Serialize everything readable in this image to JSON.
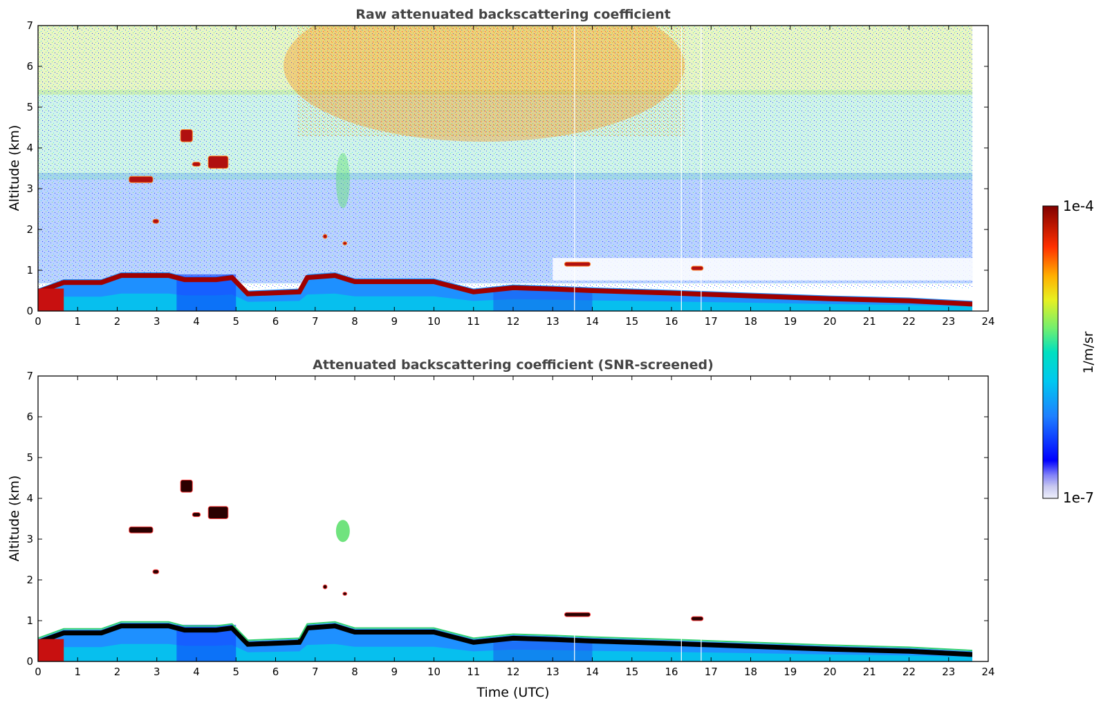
{
  "chart_data": [
    {
      "type": "heatmap",
      "title": "Raw attenuated backscattering coefficient",
      "xlabel": "",
      "ylabel": "Altitude (km)",
      "xlim": [
        0,
        24
      ],
      "ylim": [
        0,
        7
      ],
      "x_ticks": [
        "0",
        "1",
        "2",
        "3",
        "4",
        "5",
        "6",
        "7",
        "8",
        "9",
        "10",
        "11",
        "12",
        "13",
        "14",
        "15",
        "16",
        "17",
        "18",
        "19",
        "20",
        "21",
        "22",
        "23",
        "24"
      ],
      "y_ticks": [
        "0",
        "1",
        "2",
        "3",
        "4",
        "5",
        "6",
        "7"
      ],
      "data_end_hour": 23.6,
      "boundary_layer_top_km": [
        [
          0.0,
          0.55
        ],
        [
          0.65,
          0.78
        ],
        [
          1.6,
          0.78
        ],
        [
          2.1,
          0.95
        ],
        [
          3.3,
          0.95
        ],
        [
          3.7,
          0.85
        ],
        [
          4.5,
          0.85
        ],
        [
          4.9,
          0.9
        ],
        [
          5.3,
          0.5
        ],
        [
          6.6,
          0.55
        ],
        [
          6.8,
          0.9
        ],
        [
          7.5,
          0.95
        ],
        [
          8.0,
          0.8
        ],
        [
          10.0,
          0.8
        ],
        [
          10.6,
          0.65
        ],
        [
          11.0,
          0.55
        ],
        [
          12.0,
          0.65
        ],
        [
          13.0,
          0.62
        ],
        [
          14.0,
          0.58
        ],
        [
          16.0,
          0.52
        ],
        [
          18.0,
          0.45
        ],
        [
          20.0,
          0.38
        ],
        [
          22.0,
          0.33
        ],
        [
          23.6,
          0.25
        ]
      ],
      "cloud_features": [
        {
          "t0": 3.6,
          "t1": 3.9,
          "z0": 4.15,
          "z1": 4.45
        },
        {
          "t0": 4.3,
          "t1": 4.8,
          "z0": 3.5,
          "z1": 3.8
        },
        {
          "t0": 2.3,
          "t1": 2.9,
          "z0": 3.15,
          "z1": 3.3
        },
        {
          "t0": 3.9,
          "t1": 4.1,
          "z0": 3.55,
          "z1": 3.65
        },
        {
          "t0": 2.9,
          "t1": 3.05,
          "z0": 2.15,
          "z1": 2.25
        },
        {
          "t0": 13.3,
          "t1": 13.95,
          "z0": 1.1,
          "z1": 1.2
        },
        {
          "t0": 16.5,
          "t1": 16.8,
          "z0": 1.0,
          "z1": 1.1
        },
        {
          "t0": 7.7,
          "t1": 7.8,
          "z0": 1.62,
          "z1": 1.7
        },
        {
          "t0": 7.2,
          "t1": 7.3,
          "z0": 1.78,
          "z1": 1.88
        }
      ]
    },
    {
      "type": "heatmap",
      "title": "Attenuated backscattering coefficient (SNR-screened)",
      "xlabel": "Time (UTC)",
      "ylabel": "Altitude (km)",
      "xlim": [
        0,
        24
      ],
      "ylim": [
        0,
        7
      ],
      "x_ticks": [
        "0",
        "1",
        "2",
        "3",
        "4",
        "5",
        "6",
        "7",
        "8",
        "9",
        "10",
        "11",
        "12",
        "13",
        "14",
        "15",
        "16",
        "17",
        "18",
        "19",
        "20",
        "21",
        "22",
        "23",
        "24"
      ],
      "y_ticks": [
        "0",
        "1",
        "2",
        "3",
        "4",
        "5",
        "6",
        "7"
      ]
    }
  ],
  "colorbar": {
    "label": "1/m/sr",
    "max_label": "1e-4",
    "min_label": "1e-7",
    "scale": "log",
    "colormap": "jet",
    "colors": [
      "#e8e8f8",
      "#0000ff",
      "#00bfff",
      "#00e5b0",
      "#7fff7f",
      "#ffff00",
      "#ff8000",
      "#ff0000",
      "#800000"
    ]
  }
}
